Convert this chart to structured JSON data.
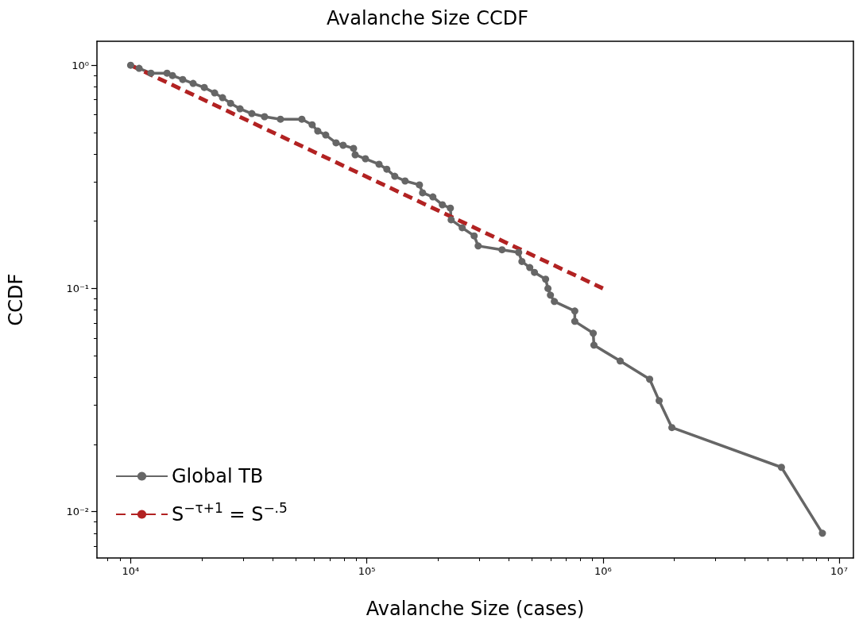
{
  "chart_data": {
    "type": "line",
    "title": "Avalanche Size CCDF",
    "xlabel": "Avalanche Size (cases)",
    "ylabel": "CCDF",
    "log": "xy",
    "xlim": [
      7200,
      11500000
    ],
    "ylim": [
      0.0062,
      1.28
    ],
    "xticks": [
      {
        "value": 10000,
        "label": "10⁴"
      },
      {
        "value": 100000,
        "label": "10⁵"
      },
      {
        "value": 1000000,
        "label": "10⁶"
      },
      {
        "value": 10000000,
        "label": "10⁷"
      }
    ],
    "yticks": [
      {
        "value": 1,
        "label": "10⁰"
      },
      {
        "value": 0.1,
        "label": "10⁻¹"
      },
      {
        "value": 0.01,
        "label": "10⁻²"
      }
    ],
    "grid": false,
    "legend": "bottom left",
    "series": [
      {
        "name": "Global TB",
        "color": "#666666",
        "marker": "circle",
        "line_style": "solid",
        "x": [
          10000,
          10860,
          12190,
          14260,
          15040,
          16620,
          18390,
          20510,
          22680,
          24500,
          26500,
          29060,
          32600,
          36900,
          43100,
          53100,
          58700,
          62000,
          67000,
          74100,
          79400,
          87900,
          89300,
          98700,
          112700,
          121600,
          131400,
          145300,
          167100,
          172300,
          190500,
          209000,
          225900,
          227700,
          253600,
          284900,
          296300,
          373900,
          439700,
          453900,
          490000,
          513000,
          571800,
          585100,
          599400,
          622800,
          760000,
          760000,
          909800,
          916000,
          1183000,
          1577000,
          1730000,
          1959000,
          5700000,
          8500000
        ],
        "values": [
          1.0,
          0.968,
          0.921,
          0.921,
          0.899,
          0.863,
          0.829,
          0.795,
          0.751,
          0.715,
          0.675,
          0.638,
          0.607,
          0.588,
          0.573,
          0.573,
          0.541,
          0.507,
          0.487,
          0.449,
          0.438,
          0.424,
          0.397,
          0.381,
          0.36,
          0.342,
          0.318,
          0.303,
          0.291,
          0.268,
          0.257,
          0.237,
          0.229,
          0.203,
          0.187,
          0.172,
          0.155,
          0.149,
          0.145,
          0.132,
          0.124,
          0.118,
          0.11,
          0.1,
          0.0933,
          0.0874,
          0.0792,
          0.0712,
          0.063,
          0.0557,
          0.0473,
          0.0392,
          0.0314,
          0.0238,
          0.0158,
          0.008
        ]
      },
      {
        "name": "S$^{−τ+1}$ = S$^{−.5}$",
        "color": "#b22222",
        "marker": "none",
        "line_style": "dashed",
        "x": [
          10000,
          1000000
        ],
        "values": [
          1.0,
          0.1
        ]
      }
    ]
  }
}
